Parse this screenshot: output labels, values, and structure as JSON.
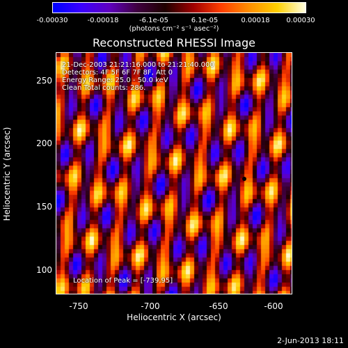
{
  "colorbar": {
    "ticks": [
      "-0.00030",
      "-0.00018",
      "-6.1e-05",
      "6.1e-05",
      "0.00018",
      "0.00030"
    ],
    "unit_label": "(photons cm⁻² s⁻¹ asec⁻²)",
    "colors": [
      "#0000ff",
      "#3c00ff",
      "#6000c0",
      "#400040",
      "#200000",
      "#a00000",
      "#ff4000",
      "#ff9000",
      "#ffd000",
      "#ffffe0"
    ]
  },
  "title": "Reconstructed RHESSI Image",
  "info": {
    "line1": "21-Dec-2003 21:21:16.000 to 21:21:40.000",
    "line2": "Detectors: 4F 5F 6F 7F 8F, Att 0",
    "line3": "Energy Range: 25.0 - 50.0 keV",
    "line4": "Clean     Total counts: 286."
  },
  "peak_label": "Location of Peak = [-739,95]",
  "x_axis": {
    "label": "Heliocentric X (arcsec)",
    "ticks": [
      "-750",
      "-700",
      "-650",
      "-600"
    ]
  },
  "y_axis": {
    "label": "Heliocentric Y (arcsec)",
    "ticks": [
      "250",
      "200",
      "150",
      "100"
    ]
  },
  "date": "2-Jun-2013 18:11"
}
